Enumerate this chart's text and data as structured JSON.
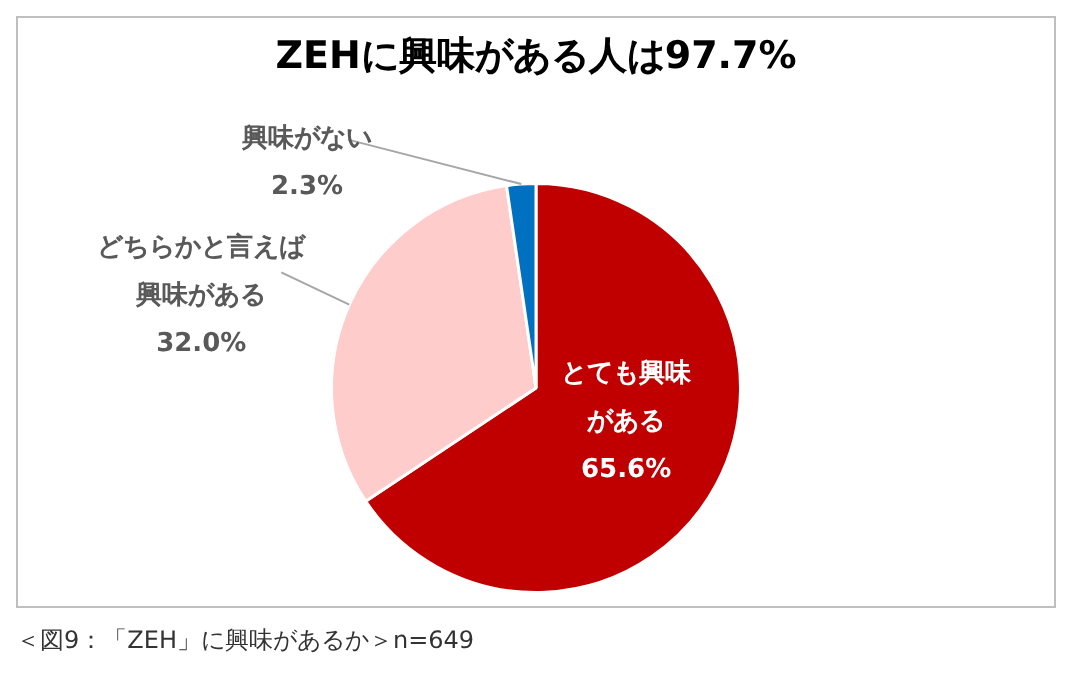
{
  "chart_data": {
    "type": "pie",
    "title": "ZEHに興味がある人は97.7%",
    "categories": [
      "とても興味がある",
      "どちらかと言えば興味がある",
      "興味がない"
    ],
    "values": [
      65.6,
      32.0,
      2.3
    ],
    "value_labels": [
      "65.6%",
      "32.0%",
      "2.3%"
    ],
    "colors": [
      "#c00000",
      "#ffcccc",
      "#0070c0"
    ],
    "legend": false,
    "annotations": [
      "＜図9：「ZEH」に興味があるか＞n=649"
    ]
  }
}
